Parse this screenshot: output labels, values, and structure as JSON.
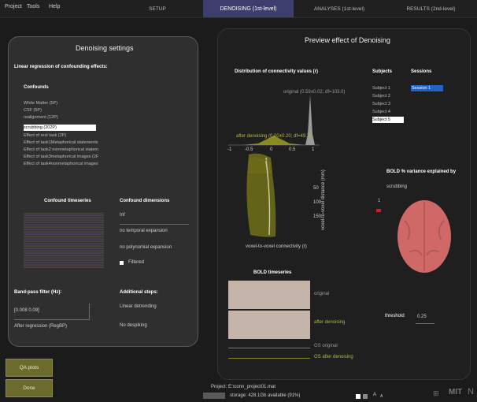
{
  "menu": [
    "Project",
    "Tools",
    "Help"
  ],
  "tabs": [
    {
      "label": "SETUP"
    },
    {
      "label": "DENOISING (1st-level)"
    },
    {
      "label": "ANALYSES (1st-level)"
    },
    {
      "label": "RESULTS (2nd-level)"
    }
  ],
  "left": {
    "title": "Denoising settings",
    "subtitle": "Linear regression of confounding effects:",
    "confounds_label": "Confounds",
    "confounds": [
      "White Matter (5P)",
      "CSF (5P)",
      "realignment (12P)",
      "scrubbing (202P)",
      "Effect of rest task (2P)",
      "Effect of task1Metaphorical statements",
      "Effect of task2 nonmetaphorical statem",
      "Effect of task3metaphorical images (2F",
      "Effect of task4nonmetaphorical images"
    ],
    "selected_index": 3,
    "timeseries_label": "Confound timeseries",
    "dimensions_label": "Confound dimensions",
    "dim_value": "Inf",
    "temporal": "no temporal expansion",
    "polynomial": "no polynomial expansion",
    "filtered": "Filtered",
    "bandpass_label": "Band-pass filter (Hz):",
    "bandpass_value": "[0.008 0.09]",
    "after_regression": "After regression (RegBP)",
    "additional_label": "Additional steps:",
    "linear_detrending": "Linear detrending",
    "despiking": "No despiking"
  },
  "right": {
    "title": "Preview effect of Denoising",
    "dist_label": "Distribution of connectivity values (r)",
    "original_stats": "original (0.59±0.02; df=103.0)",
    "after_stats": "after denoising (0.00±0.20; df=49.7)",
    "xticks": [
      "-1",
      "-0.5",
      "0",
      "0.5",
      "1"
    ],
    "yticks": [
      "50",
      "100",
      "150"
    ],
    "ylabel": "voxel-to-voxel distance (mm)",
    "xlabel": "voxel-to-voxel connectivity (r)",
    "subjects_label": "Subjects",
    "subjects": [
      "Subject 1",
      "Subject 2",
      "Subject 3",
      "Subject 4",
      "Subject 5"
    ],
    "selected_subject": 4,
    "sessions_label": "Sessions",
    "sessions": [
      "Session 1"
    ],
    "bold_var_label": "BOLD % variance explained by",
    "bold_var_sub": "scrubbing",
    "scale_max": "1",
    "threshold_label": "threshold",
    "threshold_value": "0.25",
    "bold_ts_label": "BOLD timeseries",
    "ts_original": "original",
    "ts_after": "after denoising",
    "gs_original": "GS original",
    "gs_after": "GS after denoising"
  },
  "buttons": {
    "qa": "QA plots",
    "done": "Done"
  },
  "footer": {
    "project": "Project: E:\\conn_project01.mat",
    "storage": "storage: 428.1Gb available (91%)"
  },
  "colors": {
    "accent_tab": "#3e3e6e",
    "button": "#6b6b2e",
    "olive": "#8a8a20",
    "brain": "#d06868",
    "selection": "#1e64c8"
  }
}
